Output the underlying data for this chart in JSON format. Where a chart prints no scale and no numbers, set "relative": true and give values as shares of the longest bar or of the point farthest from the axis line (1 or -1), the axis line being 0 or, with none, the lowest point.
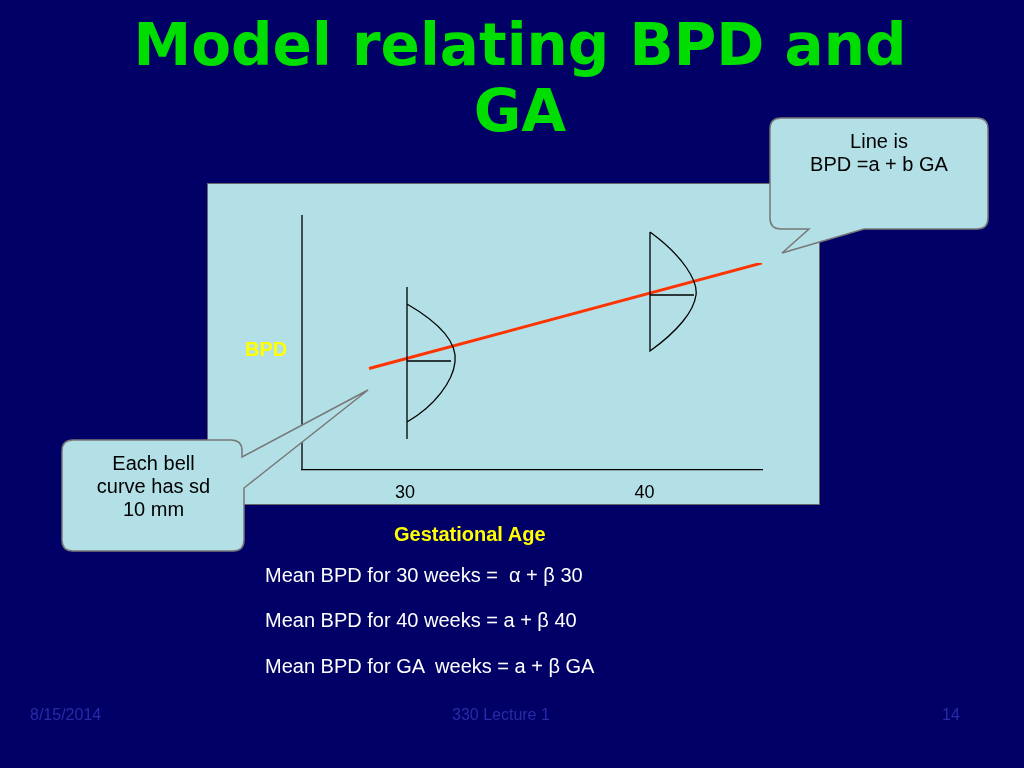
{
  "chart_data": {
    "type": "line",
    "title": "Model relating BPD and GA",
    "xlabel": "Gestational Age",
    "ylabel": "BPD",
    "relative": true,
    "x": [
      28.5,
      44.9
    ],
    "series": [
      {
        "color": "#ff3300",
        "values": [
          0.49,
          1
        ]
      }
    ],
    "xlim": [
      25.7,
      44.9
    ],
    "xticks": [
      30,
      40
    ],
    "grid": false,
    "marker": "none",
    "line_style": "solid",
    "annotations": [
      "Line is\nBPD =a + b GA",
      "Each bell\ncurve has sd\n10 mm",
      "Mean BPD for 30 weeks =  α + β 30",
      "Mean BPD for 40 weeks = a + β 40",
      "Mean BPD for GA  weeks = a + β GA",
      "8/15/2014",
      "330 Lecture 1",
      "14"
    ]
  }
}
